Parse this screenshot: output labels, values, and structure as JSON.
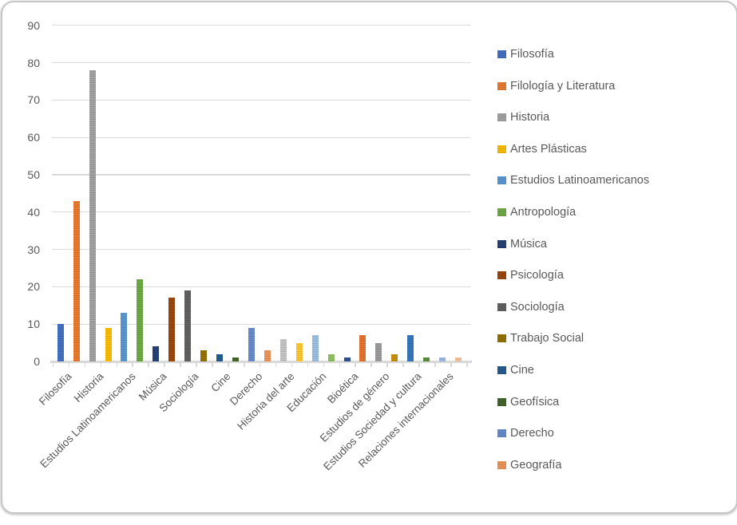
{
  "chart_data": {
    "type": "bar",
    "title": "",
    "y_axis": {
      "min": 0,
      "max": 90,
      "step": 10,
      "ticks": [
        90,
        80,
        70,
        60,
        50,
        40,
        30,
        20,
        10,
        0
      ],
      "grid": true
    },
    "x_tick_labels": [
      "Filosofía",
      "Historia",
      "Estudios Latinoamericanos",
      "Música",
      "Sociología",
      "Cine",
      "Derecho",
      "Historia del arte",
      "Educación",
      "Bioética",
      "Estudios de género",
      "Estudios Sociedad y cultura",
      "Relaciones internacionales"
    ],
    "bars": [
      {
        "name": "Filosofía",
        "value": 10,
        "color": "#4472C4"
      },
      {
        "name": "Filología y Literatura",
        "value": 43,
        "color": "#ED7D31"
      },
      {
        "name": "Historia",
        "value": 78,
        "color": "#A5A5A5"
      },
      {
        "name": "Artes Plásticas",
        "value": 9,
        "color": "#FFC000"
      },
      {
        "name": "Estudios Latinoamericanos",
        "value": 13,
        "color": "#5B9BD5"
      },
      {
        "name": "Antropología",
        "value": 22,
        "color": "#70AD47"
      },
      {
        "name": "Música",
        "value": 4,
        "color": "#264478"
      },
      {
        "name": "Psicología",
        "value": 17,
        "color": "#9E480E"
      },
      {
        "name": "Sociología",
        "value": 19,
        "color": "#636363"
      },
      {
        "name": "Trabajo Social",
        "value": 3,
        "color": "#997300"
      },
      {
        "name": "Cine",
        "value": 2,
        "color": "#255E91"
      },
      {
        "name": "Geofísica",
        "value": 1,
        "color": "#43682B"
      },
      {
        "name": "Derecho",
        "value": 9,
        "color": "#698ED0"
      },
      {
        "name": "Geografía",
        "value": 3,
        "color": "#F1975A"
      },
      {
        "name": "Historia del arte",
        "value": 6,
        "color": "#C9C9C9"
      },
      {
        "name": "",
        "value": 5,
        "color": "#FFCD33"
      },
      {
        "name": "Educación",
        "value": 7,
        "color": "#9DC3E6"
      },
      {
        "name": "",
        "value": 2,
        "color": "#94C163"
      },
      {
        "name": "Bioética",
        "value": 1,
        "color": "#2F5597"
      },
      {
        "name": "",
        "value": 7,
        "color": "#E9752F"
      },
      {
        "name": "Estudios de género",
        "value": 5,
        "color": "#9E9E9E"
      },
      {
        "name": "",
        "value": 2,
        "color": "#C9920C"
      },
      {
        "name": "Estudios Sociedad y cultura",
        "value": 7,
        "color": "#3779BE"
      },
      {
        "name": "",
        "value": 1,
        "color": "#5B8F3C"
      },
      {
        "name": "Relaciones internacionales",
        "value": 1,
        "color": "#9DB8E4"
      },
      {
        "name": "",
        "value": 1,
        "color": "#F6C49E"
      }
    ],
    "legend_position": "right"
  },
  "legend": {
    "items": [
      {
        "label": "Filosofía",
        "color": "#4472C4"
      },
      {
        "label": "Filología y Literatura",
        "color": "#ED7D31"
      },
      {
        "label": "Historia",
        "color": "#A5A5A5"
      },
      {
        "label": "Artes Plásticas",
        "color": "#FFC000"
      },
      {
        "label": "Estudios Latinoamericanos",
        "color": "#5B9BD5"
      },
      {
        "label": "Antropología",
        "color": "#70AD47"
      },
      {
        "label": "Música",
        "color": "#264478"
      },
      {
        "label": "Psicología",
        "color": "#9E480E"
      },
      {
        "label": "Sociología",
        "color": "#636363"
      },
      {
        "label": "Trabajo Social",
        "color": "#997300"
      },
      {
        "label": "Cine",
        "color": "#255E91"
      },
      {
        "label": "Geofísica",
        "color": "#43682B"
      },
      {
        "label": "Derecho",
        "color": "#698ED0"
      },
      {
        "label": "Geografía",
        "color": "#F1975A"
      }
    ]
  },
  "colors": {
    "axis_text": "#595959",
    "gridline": "#DADADA",
    "axis_line": "#D9D9D9",
    "background": "#FFFFFF",
    "card_border": "#C6C6C6"
  }
}
